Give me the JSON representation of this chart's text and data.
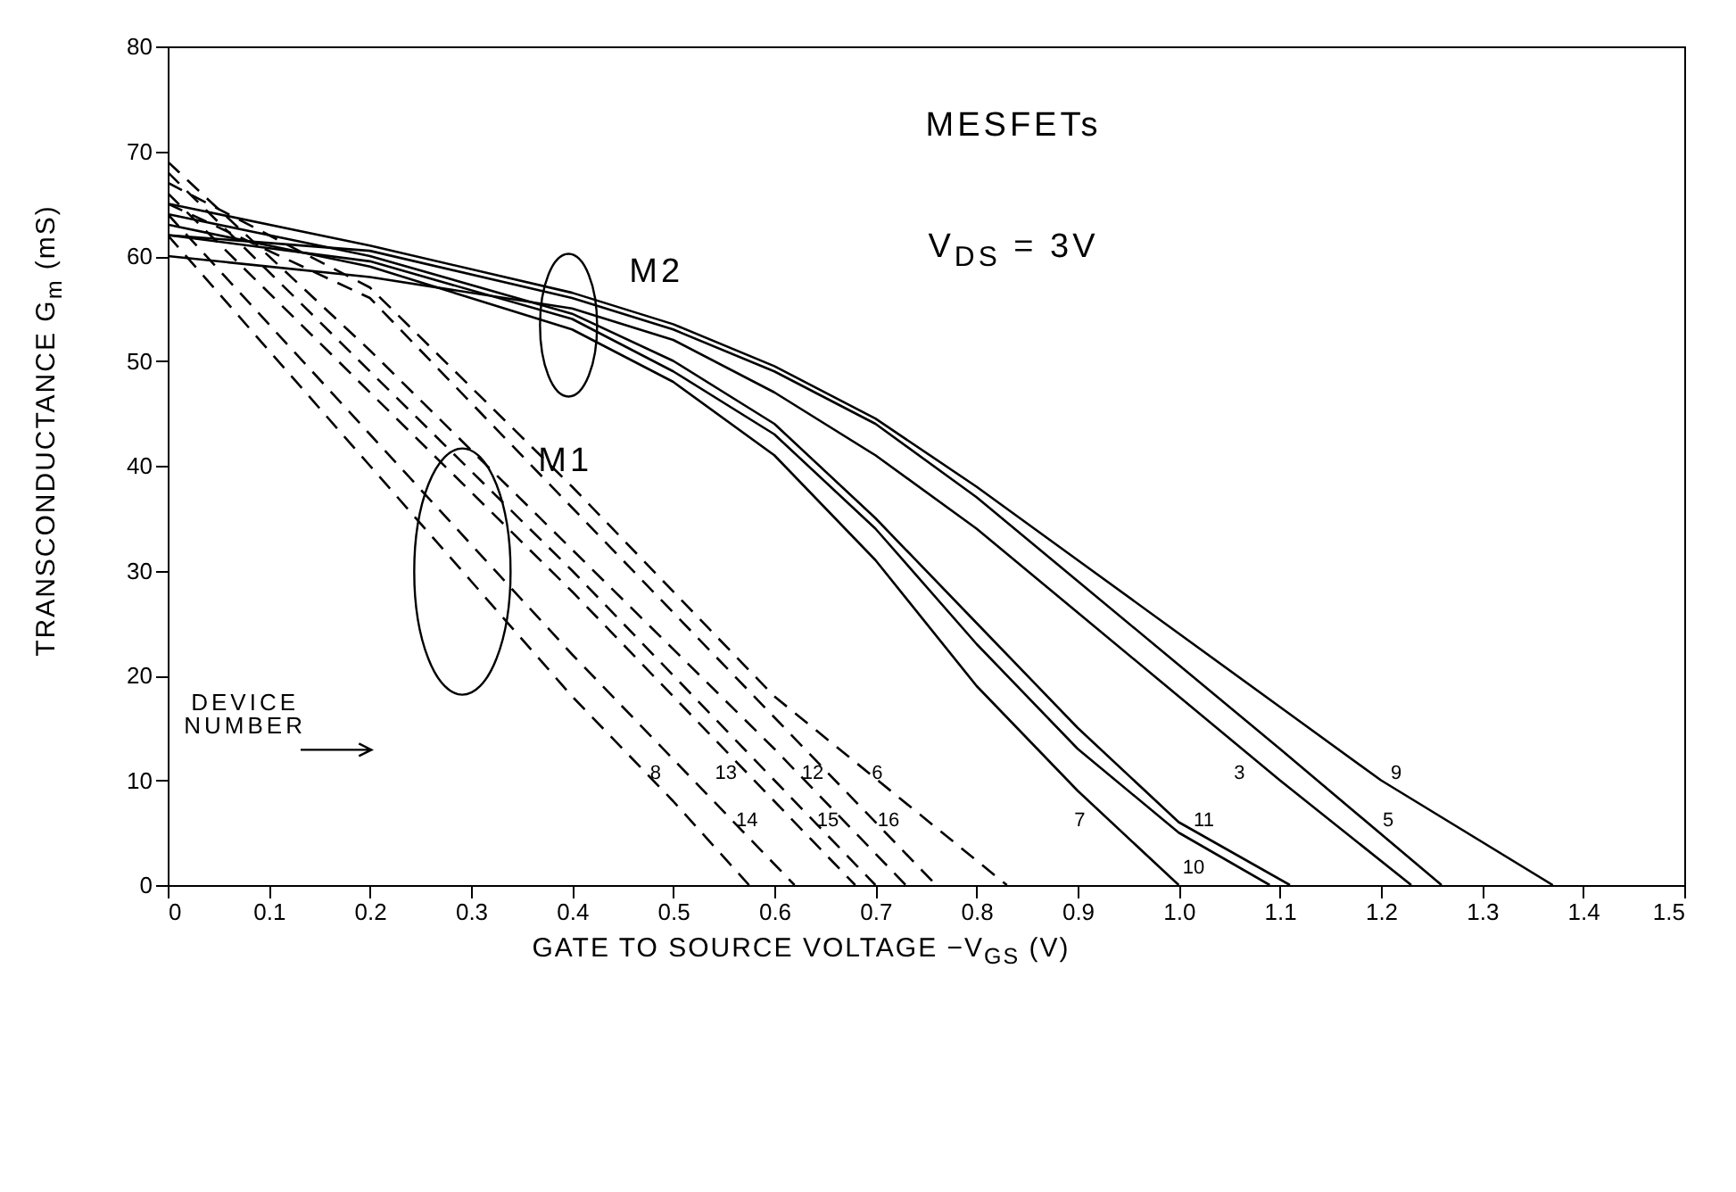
{
  "chart_data": {
    "type": "line",
    "xlabel": "GATE TO SOURCE VOLTAGE  −V$_{GS}$ (V)",
    "ylabel": "TRANSCONDUCTANCE   G$_{m}$ (mS)",
    "xlim": [
      0,
      1.5
    ],
    "ylim": [
      0,
      80
    ],
    "xticks": [
      0,
      0.1,
      0.2,
      0.3,
      0.4,
      0.5,
      0.6,
      0.7,
      0.8,
      0.9,
      {
        "value": 1,
        "label": "1.0"
      },
      1.1,
      1.2,
      1.3,
      1.4,
      1.5
    ],
    "yticks": [
      0,
      10,
      20,
      30,
      40,
      50,
      60,
      70,
      80
    ],
    "grid": false,
    "legend": false,
    "marker": "none",
    "annotations": [
      "M1",
      "M2",
      "MESFETs",
      "V$_{DS}$ = 3V",
      "DEVICE NUMBER"
    ],
    "series": [
      {
        "name": "8",
        "color": "#000000",
        "line_style": "dashed",
        "x": [
          0,
          0.1,
          0.2,
          0.3,
          0.4,
          0.5,
          0.575
        ],
        "values": [
          62,
          51,
          40,
          29,
          18,
          8,
          0
        ]
      },
      {
        "name": "14",
        "color": "#000000",
        "line_style": "dashed",
        "x": [
          0,
          0.2,
          0.4,
          0.62
        ],
        "values": [
          64,
          43,
          22,
          0
        ]
      },
      {
        "name": "13",
        "color": "#000000",
        "line_style": "dashed",
        "x": [
          0,
          0.2,
          0.4,
          0.6,
          0.68
        ],
        "values": [
          66,
          47,
          28,
          8,
          0
        ]
      },
      {
        "name": "15",
        "color": "#000000",
        "line_style": "dashed",
        "x": [
          0,
          0.2,
          0.4,
          0.6,
          0.7
        ],
        "values": [
          68,
          49,
          30,
          10,
          0
        ]
      },
      {
        "name": "12",
        "color": "#000000",
        "line_style": "dashed",
        "x": [
          0,
          0.2,
          0.4,
          0.6,
          0.73
        ],
        "values": [
          69,
          51,
          32,
          13,
          0
        ]
      },
      {
        "name": "16",
        "color": "#000000",
        "line_style": "dashed",
        "x": [
          0,
          0.2,
          0.4,
          0.6,
          0.76
        ],
        "values": [
          65,
          56,
          36,
          16,
          0
        ]
      },
      {
        "name": "6",
        "color": "#000000",
        "line_style": "dashed",
        "x": [
          0,
          0.2,
          0.4,
          0.6,
          0.83
        ],
        "values": [
          67,
          57,
          38,
          18,
          0
        ]
      },
      {
        "name": "7",
        "color": "#000000",
        "line_style": "solid",
        "x": [
          0,
          0.2,
          0.4,
          0.5,
          0.6,
          0.7,
          0.8,
          0.9,
          1.0
        ],
        "values": [
          63,
          59,
          53,
          48,
          41,
          31,
          19,
          9,
          0
        ]
      },
      {
        "name": "10",
        "color": "#000000",
        "line_style": "solid",
        "x": [
          0,
          0.2,
          0.4,
          0.5,
          0.6,
          0.7,
          0.8,
          0.9,
          1.0,
          1.09
        ],
        "values": [
          62,
          59.5,
          54,
          49,
          43,
          34,
          23,
          13,
          5,
          0
        ]
      },
      {
        "name": "11",
        "color": "#000000",
        "line_style": "solid",
        "x": [
          0,
          0.2,
          0.4,
          0.5,
          0.6,
          0.7,
          0.8,
          0.9,
          1.0,
          1.11
        ],
        "values": [
          64,
          60,
          54.5,
          50,
          44,
          35,
          25,
          15,
          6,
          0
        ]
      },
      {
        "name": "3",
        "color": "#000000",
        "line_style": "solid",
        "x": [
          0,
          0.2,
          0.4,
          0.5,
          0.6,
          0.7,
          0.8,
          0.9,
          1.0,
          1.1,
          1.23
        ],
        "values": [
          60,
          58,
          55,
          52,
          47,
          41,
          34,
          26,
          18,
          10,
          0
        ]
      },
      {
        "name": "5",
        "color": "#000000",
        "line_style": "solid",
        "x": [
          0,
          0.2,
          0.4,
          0.5,
          0.6,
          0.7,
          0.8,
          0.9,
          1.0,
          1.1,
          1.26
        ],
        "values": [
          62,
          60.5,
          56,
          53,
          49,
          44,
          37,
          29,
          21,
          13,
          0
        ]
      },
      {
        "name": "9",
        "color": "#000000",
        "line_style": "solid",
        "x": [
          0,
          0.2,
          0.4,
          0.5,
          0.6,
          0.7,
          0.8,
          0.9,
          1.0,
          1.1,
          1.2,
          1.37
        ],
        "values": [
          65,
          61,
          56.5,
          53.5,
          49.5,
          44.5,
          38,
          31,
          24,
          17,
          10,
          0
        ]
      }
    ]
  }
}
